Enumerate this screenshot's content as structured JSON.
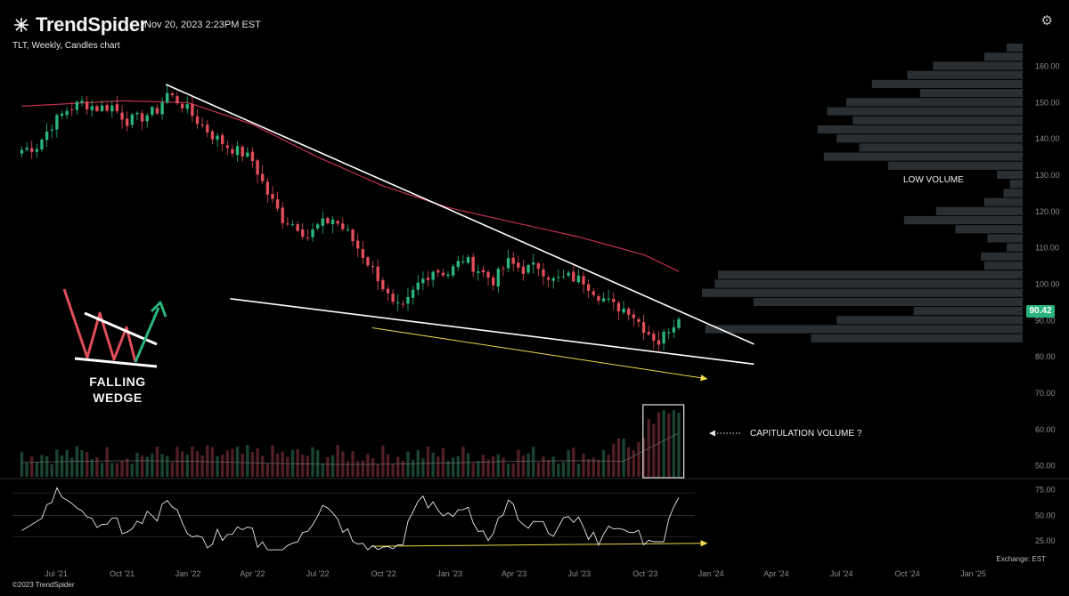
{
  "header": {
    "brand": "TrendSpider",
    "timestamp": "Nov 20, 2023 2:23PM EST",
    "subtitle": "TLT, Weekly, Candles chart"
  },
  "footer": {
    "copyright": "©2023 TrendSpider",
    "exchange": "Exchange: EST"
  },
  "annotations": {
    "low_volume": "LOW VOLUME",
    "capitulation": "CAPITULATION VOLUME ?",
    "wedge_line1": "FALLING",
    "wedge_line2": "WEDGE"
  },
  "current_price": "90.42",
  "colors": {
    "up": "#2ab57d",
    "down": "#e04e5a",
    "ma": "#c2314f",
    "trendline": "#ffffff",
    "divergence": "#f0d94a",
    "profile": "#2a2f33",
    "background": "#000000"
  },
  "chart_data": {
    "type": "candlestick",
    "symbol": "TLT",
    "interval": "Weekly",
    "x_ticks": [
      "Jul '21",
      "Oct '21",
      "Jan '22",
      "Apr '22",
      "Jul '22",
      "Oct '22",
      "Jan '23",
      "Apr '23",
      "Jul '23",
      "Oct '23",
      "Jan '24",
      "Apr '24",
      "Jul '24",
      "Oct '24",
      "Jan '25"
    ],
    "x_tick_dates": [
      "2021-07-01",
      "2021-10-01",
      "2022-01-01",
      "2022-04-01",
      "2022-07-01",
      "2022-10-01",
      "2023-01-01",
      "2023-04-01",
      "2023-07-01",
      "2023-10-01",
      "2024-01-01",
      "2024-04-01",
      "2024-07-01",
      "2024-10-01",
      "2025-01-01"
    ],
    "x_range": [
      "2021-05-01",
      "2025-03-01"
    ],
    "price_axis": {
      "ticks": [
        160,
        150,
        140,
        130,
        120,
        110,
        100,
        90,
        80,
        70,
        60,
        50
      ],
      "range": [
        46,
        166
      ]
    },
    "rsi_axis": {
      "ticks": [
        75,
        50,
        25
      ],
      "range": [
        10,
        80
      ]
    },
    "close_anchors": [
      [
        "2021-05-14",
        137
      ],
      [
        "2021-06-04",
        138
      ],
      [
        "2021-06-25",
        144
      ],
      [
        "2021-07-16",
        148
      ],
      [
        "2021-08-06",
        150
      ],
      [
        "2021-08-27",
        148.5
      ],
      [
        "2021-09-17",
        149
      ],
      [
        "2021-10-08",
        145
      ],
      [
        "2021-10-29",
        146
      ],
      [
        "2021-11-19",
        148
      ],
      [
        "2021-12-03",
        152.5
      ],
      [
        "2021-12-24",
        149.5
      ],
      [
        "2022-01-14",
        145
      ],
      [
        "2022-02-04",
        141
      ],
      [
        "2022-02-25",
        138
      ],
      [
        "2022-03-18",
        136
      ],
      [
        "2022-04-01",
        134
      ],
      [
        "2022-04-22",
        125
      ],
      [
        "2022-05-13",
        118
      ],
      [
        "2022-06-03",
        116
      ],
      [
        "2022-06-17",
        113
      ],
      [
        "2022-07-01",
        116
      ],
      [
        "2022-07-22",
        118
      ],
      [
        "2022-08-12",
        114
      ],
      [
        "2022-09-02",
        108
      ],
      [
        "2022-09-23",
        102
      ],
      [
        "2022-10-14",
        94
      ],
      [
        "2022-10-28",
        93
      ],
      [
        "2022-11-18",
        100
      ],
      [
        "2022-12-09",
        104
      ],
      [
        "2022-12-30",
        103
      ],
      [
        "2023-01-20",
        107
      ],
      [
        "2023-02-10",
        104
      ],
      [
        "2023-03-03",
        101
      ],
      [
        "2023-03-24",
        106
      ],
      [
        "2023-04-14",
        104
      ],
      [
        "2023-05-05",
        105
      ],
      [
        "2023-05-26",
        101
      ],
      [
        "2023-06-16",
        102
      ],
      [
        "2023-07-07",
        101
      ],
      [
        "2023-07-28",
        97
      ],
      [
        "2023-08-18",
        94
      ],
      [
        "2023-09-08",
        93
      ],
      [
        "2023-09-29",
        88
      ],
      [
        "2023-10-20",
        84
      ],
      [
        "2023-11-03",
        88
      ],
      [
        "2023-11-17",
        90.42
      ]
    ],
    "moving_average": [
      [
        "2021-05-14",
        149
      ],
      [
        "2021-10-01",
        150.5
      ],
      [
        "2022-01-01",
        150
      ],
      [
        "2022-04-01",
        144
      ],
      [
        "2022-07-01",
        135
      ],
      [
        "2022-10-01",
        127
      ],
      [
        "2023-01-01",
        121
      ],
      [
        "2023-04-01",
        117
      ],
      [
        "2023-07-01",
        113
      ],
      [
        "2023-10-01",
        108
      ],
      [
        "2023-11-17",
        103.5
      ]
    ],
    "trendlines": [
      {
        "name": "upper",
        "points": [
          [
            "2021-12-01",
            155
          ],
          [
            "2024-03-01",
            83.5
          ]
        ],
        "color": "#ffffff"
      },
      {
        "name": "lower",
        "points": [
          [
            "2022-03-01",
            96
          ],
          [
            "2024-03-01",
            78
          ]
        ],
        "color": "#ffffff"
      },
      {
        "name": "price-divergence",
        "points": [
          [
            "2022-09-15",
            88
          ],
          [
            "2023-12-25",
            74
          ]
        ],
        "color": "#f0d94a",
        "arrow": true
      },
      {
        "name": "rsi-divergence",
        "pane": "rsi",
        "points": [
          [
            "2022-09-15",
            19.5
          ],
          [
            "2023-12-25",
            22.5
          ]
        ],
        "color": "#f0d94a",
        "arrow": true
      }
    ],
    "volume_profile": {
      "note": "horizontal volume-by-price histogram on the right; relative widths 0-1",
      "bins": [
        [
          165,
          0.05
        ],
        [
          162.5,
          0.12
        ],
        [
          160,
          0.28
        ],
        [
          157.5,
          0.36
        ],
        [
          155,
          0.47
        ],
        [
          152.5,
          0.32
        ],
        [
          150,
          0.55
        ],
        [
          147.5,
          0.61
        ],
        [
          145,
          0.53
        ],
        [
          142.5,
          0.64
        ],
        [
          140,
          0.58
        ],
        [
          137.5,
          0.51
        ],
        [
          135,
          0.62
        ],
        [
          132.5,
          0.42
        ],
        [
          130,
          0.08
        ],
        [
          127.5,
          0.04
        ],
        [
          125,
          0.06
        ],
        [
          122.5,
          0.12
        ],
        [
          120,
          0.27
        ],
        [
          117.5,
          0.37
        ],
        [
          115,
          0.21
        ],
        [
          112.5,
          0.11
        ],
        [
          110,
          0.05
        ],
        [
          107.5,
          0.13
        ],
        [
          105,
          0.12
        ],
        [
          102.5,
          0.95
        ],
        [
          100,
          0.96
        ],
        [
          97.5,
          1.0
        ],
        [
          95,
          0.84
        ],
        [
          92.5,
          0.34
        ],
        [
          90,
          0.58
        ],
        [
          87.5,
          0.99
        ],
        [
          85,
          0.66
        ]
      ]
    },
    "volume_panel": {
      "note": "weekly volume bars at bottom of price pane; spike Oct–Nov 2023 highlighted in box"
    },
    "rsi_panel": {
      "note": "RSI oscillator with 50 and 30-ish guide lines"
    }
  }
}
